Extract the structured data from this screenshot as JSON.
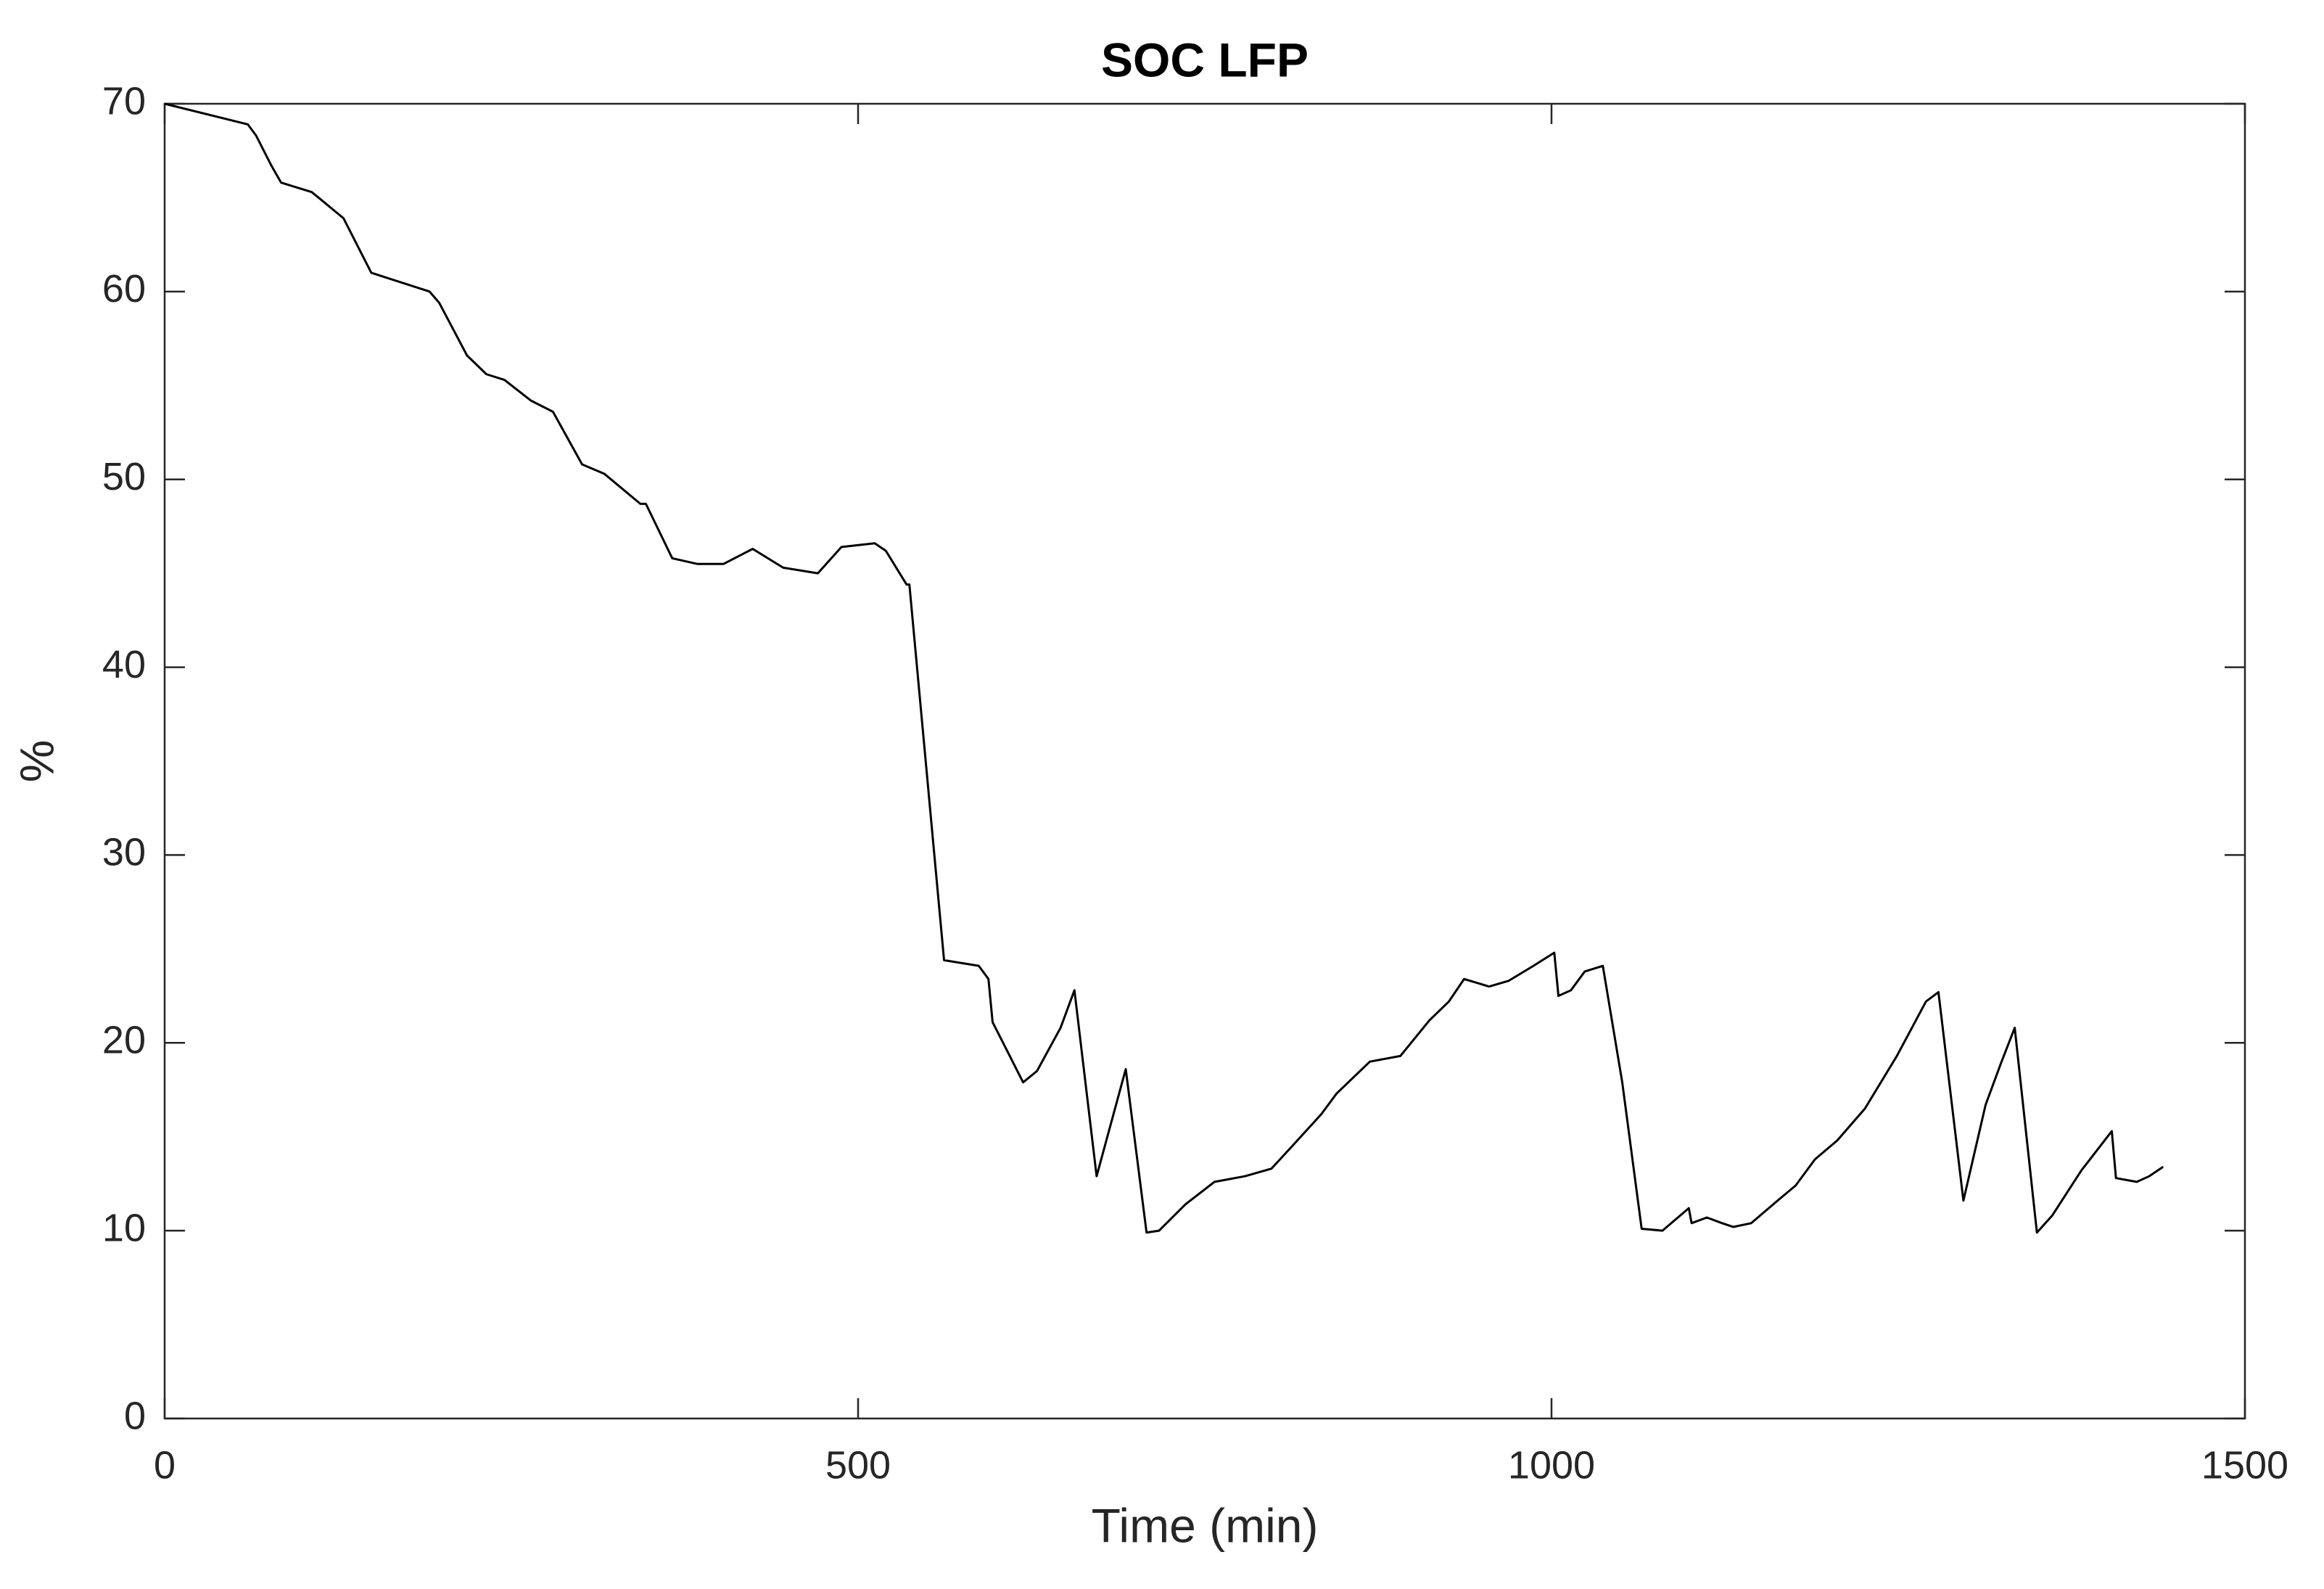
{
  "chart_data": {
    "type": "line",
    "title": "SOC LFP",
    "x_label": "Time (min)",
    "y_label": "%",
    "x": [
      0,
      60,
      66,
      77,
      84,
      106,
      111,
      129,
      149,
      191,
      198,
      218,
      232,
      245,
      264,
      280,
      301,
      317,
      343,
      347,
      366,
      384,
      403,
      424,
      446,
      471,
      488,
      512,
      520,
      535,
      537,
      562,
      587,
      594,
      597,
      619,
      629,
      646,
      656,
      672,
      693,
      708,
      717,
      736,
      757,
      779,
      798,
      813,
      834,
      845,
      869,
      891,
      912,
      926,
      937,
      955,
      969,
      987,
      1002,
      1005,
      1014,
      1024,
      1037,
      1051,
      1065,
      1080,
      1099,
      1101,
      1112,
      1123,
      1131,
      1144,
      1163,
      1176,
      1190,
      1206,
      1226,
      1249,
      1270,
      1279,
      1297,
      1313,
      1324,
      1334,
      1350,
      1361,
      1382,
      1404,
      1407,
      1422,
      1431,
      1441
    ],
    "series": [
      {
        "name": "SOC",
        "color": "#000000",
        "values": [
          70,
          68.9,
          68.3,
          66.7,
          65.8,
          65.3,
          65.0,
          63.9,
          61.0,
          60.0,
          59.4,
          56.6,
          55.6,
          55.3,
          54.2,
          53.6,
          50.8,
          50.3,
          48.7,
          48.7,
          45.8,
          45.5,
          45.5,
          46.3,
          45.3,
          45.0,
          46.4,
          46.6,
          46.2,
          44.4,
          44.4,
          24.4,
          24.1,
          23.4,
          21.1,
          17.9,
          18.5,
          20.8,
          22.8,
          12.9,
          18.6,
          9.9,
          10.0,
          11.4,
          12.6,
          12.9,
          13.3,
          14.5,
          16.2,
          17.3,
          19.0,
          19.3,
          21.2,
          22.2,
          23.4,
          23.0,
          23.3,
          24.1,
          24.8,
          22.5,
          22.8,
          23.8,
          24.1,
          17.9,
          10.1,
          10.0,
          11.2,
          10.4,
          10.7,
          10.4,
          10.2,
          10.4,
          11.6,
          12.4,
          13.8,
          14.8,
          16.5,
          19.3,
          22.2,
          22.7,
          11.6,
          16.7,
          18.9,
          20.8,
          9.9,
          10.8,
          13.2,
          15.3,
          12.8,
          12.6,
          12.9,
          13.4
        ]
      }
    ],
    "xlim": [
      0,
      1500
    ],
    "xticks": [
      0,
      500,
      1000,
      1500
    ],
    "ylim": [
      0,
      70
    ],
    "yticks": [
      0,
      10,
      20,
      30,
      40,
      50,
      60,
      70
    ]
  }
}
